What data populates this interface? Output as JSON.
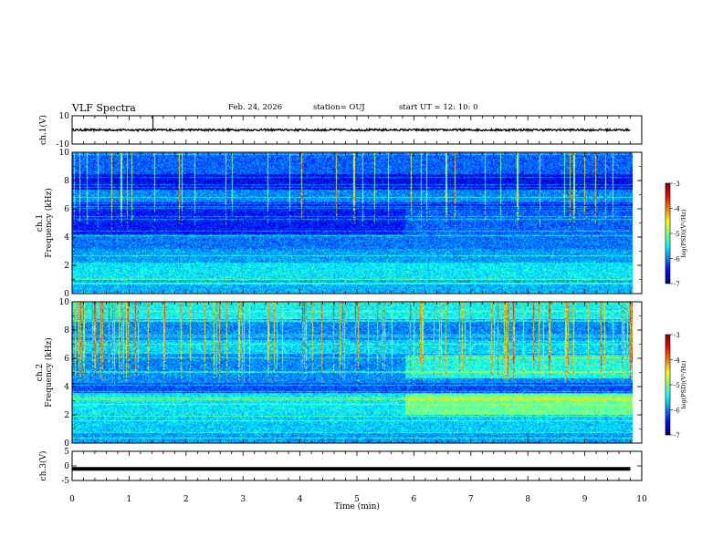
{
  "header": {
    "title": "VLF Spectra",
    "date": "Feb. 24, 2026",
    "station": "station= OUJ",
    "start": "start  UT  =   12: 10: 0"
  },
  "chart_data": [
    {
      "type": "line",
      "title": "",
      "ylabel": "ch.1(V)",
      "ylim": [
        -10,
        10
      ],
      "yticks": [
        "10",
        "-10"
      ],
      "series": [
        {
          "x": [
            0,
            9.8
          ],
          "values": [
            0,
            0
          ]
        }
      ]
    },
    {
      "type": "heatmap",
      "ylabel": "ch.1  Frequency (kHz)",
      "ylim": [
        0,
        10
      ],
      "yticks": [
        "0",
        "2",
        "4",
        "6",
        "8",
        "10"
      ],
      "colorbar": {
        "label": "log(PSD)(V²/Hz)",
        "range": [
          -7,
          -3
        ],
        "ticks": [
          "-3",
          "-4",
          "-5",
          "-6",
          "-7"
        ]
      }
    },
    {
      "type": "heatmap",
      "ylabel": "ch.2  Frequency (kHz)",
      "ylim": [
        0,
        10
      ],
      "yticks": [
        "0",
        "2",
        "4",
        "6",
        "8",
        "10"
      ],
      "colorbar": {
        "label": "log(PSD)(V²/Hz)",
        "range": [
          -7,
          -3
        ],
        "ticks": [
          "-3",
          "-4",
          "-5",
          "-6",
          "-7"
        ]
      }
    },
    {
      "type": "line",
      "ylabel": "ch.3(V)",
      "ylim": [
        -5,
        5
      ],
      "yticks": [
        "5",
        "0",
        "-5"
      ],
      "series": [
        {
          "x": [
            0,
            9.8
          ],
          "values": [
            -1,
            -1
          ]
        }
      ]
    }
  ],
  "xaxis": {
    "label": "Time  (min)",
    "range": [
      0,
      10
    ],
    "ticks": [
      "0",
      "1",
      "2",
      "3",
      "4",
      "5",
      "6",
      "7",
      "8",
      "9",
      "10"
    ]
  }
}
